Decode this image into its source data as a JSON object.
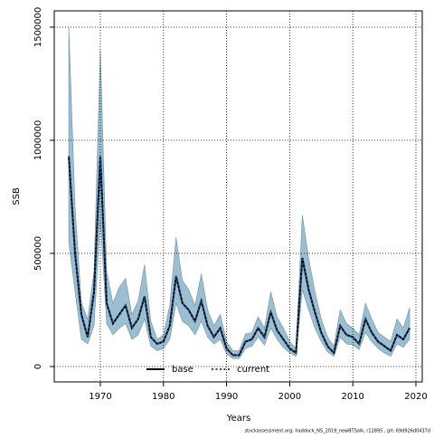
{
  "chart_data": {
    "type": "line",
    "xlabel": "Years",
    "ylabel": "SSB",
    "footnote": "stockassessment.org, haddock_NS_2019_newBTSalk, r12895 , git: 69d926d0437d",
    "x": [
      1965,
      1966,
      1967,
      1968,
      1969,
      1970,
      1971,
      1972,
      1973,
      1974,
      1975,
      1976,
      1977,
      1978,
      1979,
      1980,
      1981,
      1982,
      1983,
      1984,
      1985,
      1986,
      1987,
      1988,
      1989,
      1990,
      1991,
      1992,
      1993,
      1994,
      1995,
      1996,
      1997,
      1998,
      1999,
      2000,
      2001,
      2002,
      2003,
      2004,
      2005,
      2006,
      2007,
      2008,
      2009,
      2010,
      2011,
      2012,
      2013,
      2014,
      2015,
      2016,
      2017,
      2018,
      2019
    ],
    "series": [
      {
        "name": "base",
        "color": "#000000",
        "linestyle": "solid",
        "values": [
          930000,
          500000,
          230000,
          130000,
          330000,
          930000,
          280000,
          190000,
          230000,
          270000,
          170000,
          210000,
          310000,
          130000,
          100000,
          110000,
          180000,
          400000,
          280000,
          250000,
          200000,
          290000,
          180000,
          130000,
          170000,
          80000,
          50000,
          50000,
          110000,
          120000,
          170000,
          130000,
          240000,
          160000,
          120000,
          80000,
          60000,
          480000,
          340000,
          240000,
          150000,
          90000,
          60000,
          180000,
          140000,
          130000,
          100000,
          210000,
          150000,
          110000,
          90000,
          70000,
          140000,
          120000,
          170000
        ]
      },
      {
        "name": "current",
        "color": "#1f4e8c",
        "linestyle": "dotted",
        "values": [
          930000,
          500000,
          230000,
          130000,
          330000,
          930000,
          280000,
          190000,
          230000,
          270000,
          170000,
          210000,
          310000,
          130000,
          100000,
          110000,
          180000,
          400000,
          280000,
          250000,
          200000,
          290000,
          180000,
          130000,
          170000,
          80000,
          50000,
          50000,
          110000,
          120000,
          170000,
          130000,
          240000,
          160000,
          120000,
          80000,
          60000,
          480000,
          340000,
          240000,
          150000,
          90000,
          60000,
          180000,
          140000,
          130000,
          100000,
          210000,
          150000,
          110000,
          90000,
          70000,
          140000,
          120000,
          170000
        ]
      }
    ],
    "band": {
      "color": "#9bbfd0",
      "upper": [
        1500000,
        700000,
        280000,
        210000,
        420000,
        1400000,
        420000,
        280000,
        350000,
        390000,
        230000,
        290000,
        450000,
        200000,
        120000,
        140000,
        270000,
        570000,
        380000,
        340000,
        270000,
        410000,
        250000,
        180000,
        230000,
        110000,
        70000,
        70000,
        145000,
        150000,
        220000,
        170000,
        330000,
        220000,
        170000,
        110000,
        80000,
        670000,
        480000,
        330000,
        210000,
        130000,
        90000,
        250000,
        190000,
        170000,
        140000,
        280000,
        210000,
        150000,
        130000,
        110000,
        210000,
        170000,
        260000
      ],
      "lower": [
        550000,
        330000,
        120000,
        100000,
        180000,
        650000,
        190000,
        140000,
        170000,
        190000,
        120000,
        140000,
        210000,
        90000,
        70000,
        80000,
        120000,
        280000,
        200000,
        180000,
        140000,
        200000,
        130000,
        100000,
        120000,
        55000,
        35000,
        35000,
        80000,
        90000,
        130000,
        95000,
        170000,
        120000,
        85000,
        60000,
        45000,
        340000,
        250000,
        170000,
        110000,
        65000,
        45000,
        130000,
        100000,
        95000,
        75000,
        150000,
        110000,
        80000,
        60000,
        45000,
        100000,
        85000,
        120000
      ]
    },
    "xlim": [
      1962.7,
      2021
    ],
    "ylim": [
      -68000,
      1572000
    ],
    "xticks": [
      1970,
      1980,
      1990,
      2000,
      2010,
      2020
    ],
    "yticks": [
      0,
      500000,
      1000000,
      1500000
    ],
    "grid": true,
    "legend": "bottom"
  }
}
